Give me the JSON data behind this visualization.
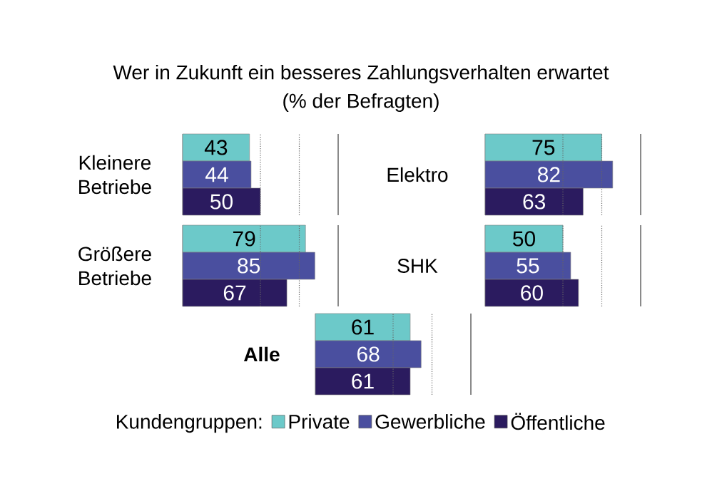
{
  "chart_data": [
    {
      "type": "bar",
      "orientation": "horizontal",
      "title": "Wer in Zukunft ein besseres Zahlungsverhalten erwartet",
      "subtitle": "(% der Befragten)",
      "categories": [
        "Kleinere Betriebe"
      ],
      "series": [
        {
          "color": "#6cc9c9",
          "values": [
            43
          ]
        },
        {
          "color": "#4a4f9f",
          "values": [
            44
          ]
        },
        {
          "color": "#2b1b5f",
          "values": [
            50
          ]
        }
      ],
      "xlim": [
        0,
        100
      ],
      "tick_labels": "y",
      "data_labels": true,
      "ref_lines": [
        {
          "axis": "x",
          "value": 50,
          "line_style": "dotted"
        },
        {
          "axis": "x",
          "value": 75,
          "line_style": "dotted"
        },
        {
          "axis": "x",
          "value": 100,
          "line_style": "solid"
        }
      ]
    },
    {
      "type": "bar",
      "orientation": "horizontal",
      "categories": [
        "Elektro"
      ],
      "series": [
        {
          "color": "#6cc9c9",
          "values": [
            75
          ]
        },
        {
          "color": "#4a4f9f",
          "values": [
            82
          ]
        },
        {
          "color": "#2b1b5f",
          "values": [
            63
          ]
        }
      ],
      "xlim": [
        0,
        100
      ],
      "tick_labels": "y",
      "data_labels": true,
      "ref_lines": [
        {
          "axis": "x",
          "value": 50,
          "line_style": "dotted"
        },
        {
          "axis": "x",
          "value": 75,
          "line_style": "dotted"
        },
        {
          "axis": "x",
          "value": 100,
          "line_style": "solid"
        }
      ]
    },
    {
      "type": "bar",
      "orientation": "horizontal",
      "categories": [
        "Größere Betriebe"
      ],
      "series": [
        {
          "color": "#6cc9c9",
          "values": [
            79
          ]
        },
        {
          "color": "#4a4f9f",
          "values": [
            85
          ]
        },
        {
          "color": "#2b1b5f",
          "values": [
            67
          ]
        }
      ],
      "xlim": [
        0,
        100
      ],
      "tick_labels": "y",
      "data_labels": true,
      "ref_lines": [
        {
          "axis": "x",
          "value": 50,
          "line_style": "dotted"
        },
        {
          "axis": "x",
          "value": 75,
          "line_style": "dotted"
        },
        {
          "axis": "x",
          "value": 100,
          "line_style": "solid"
        }
      ]
    },
    {
      "type": "bar",
      "orientation": "horizontal",
      "categories": [
        "SHK"
      ],
      "series": [
        {
          "color": "#6cc9c9",
          "values": [
            50
          ]
        },
        {
          "color": "#4a4f9f",
          "values": [
            55
          ]
        },
        {
          "color": "#2b1b5f",
          "values": [
            60
          ]
        }
      ],
      "xlim": [
        0,
        100
      ],
      "tick_labels": "y",
      "data_labels": true,
      "ref_lines": [
        {
          "axis": "x",
          "value": 50,
          "line_style": "dotted"
        },
        {
          "axis": "x",
          "value": 75,
          "line_style": "dotted"
        },
        {
          "axis": "x",
          "value": 100,
          "line_style": "solid"
        }
      ]
    },
    {
      "type": "bar",
      "orientation": "horizontal",
      "categories": [
        "Alle"
      ],
      "legend_title": "Kundengruppen:",
      "legend": "bottom",
      "series": [
        {
          "name": "Private",
          "color": "#6cc9c9",
          "values": [
            61
          ]
        },
        {
          "name": "Gewerbliche",
          "color": "#4a4f9f",
          "values": [
            68
          ]
        },
        {
          "name": "Öffentliche",
          "color": "#2b1b5f",
          "values": [
            61
          ]
        }
      ],
      "xlim": [
        0,
        100
      ],
      "tick_labels": "y",
      "data_labels": true,
      "ref_lines": [
        {
          "axis": "x",
          "value": 50,
          "line_style": "dotted"
        },
        {
          "axis": "x",
          "value": 75,
          "line_style": "dotted"
        },
        {
          "axis": "x",
          "value": 100,
          "line_style": "solid"
        }
      ]
    }
  ]
}
